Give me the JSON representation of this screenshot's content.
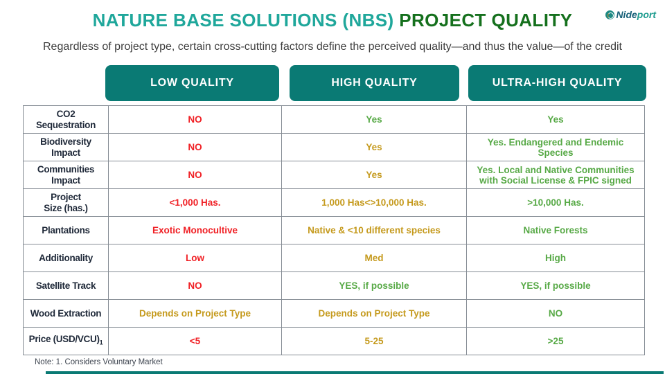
{
  "title": {
    "teal": "NATURE BASE SOLUTIONS (NBS)",
    "green": "PROJECT QUALITY"
  },
  "logo": {
    "icon": "swirl-logo-icon",
    "name_left": "Nide",
    "name_right": "port"
  },
  "subtitle": "Regardless of project type, certain cross-cutting factors define the perceived quality—and thus the value—of the credit",
  "note": "Note: 1. Considers Voluntary Market",
  "colors": {
    "title_teal": "#1FA79B",
    "title_green": "#15701D",
    "pill_teal": "#0A7A74",
    "red": "#F01F24",
    "green": "#57A946",
    "gold": "#C59A1D",
    "label": "#1E2838",
    "border": "#858C94"
  },
  "table": {
    "columns": [
      "LOW QUALITY",
      "HIGH QUALITY",
      "ULTRA-HIGH QUALITY"
    ],
    "rows": [
      {
        "label": "CO2\nSequestration",
        "cells": [
          {
            "text": "NO",
            "tone": "red"
          },
          {
            "text": "Yes",
            "tone": "green"
          },
          {
            "text": "Yes",
            "tone": "green"
          }
        ]
      },
      {
        "label": "Biodiversity\nImpact",
        "cells": [
          {
            "text": "NO",
            "tone": "red"
          },
          {
            "text": "Yes",
            "tone": "gold"
          },
          {
            "text": "Yes. Endangered and Endemic Species",
            "tone": "green"
          }
        ]
      },
      {
        "label": "Communities\nImpact",
        "cells": [
          {
            "text": "NO",
            "tone": "red"
          },
          {
            "text": "Yes",
            "tone": "gold"
          },
          {
            "text": "Yes. Local and Native Communities with Social License & FPIC signed",
            "tone": "green"
          }
        ]
      },
      {
        "label": "Project\nSize (has.)",
        "cells": [
          {
            "text": "<1,000 Has.",
            "tone": "red"
          },
          {
            "text": "1,000 Has<>10,000 Has.",
            "tone": "gold"
          },
          {
            "text": ">10,000 Has.",
            "tone": "green"
          }
        ]
      },
      {
        "label": "Plantations",
        "cells": [
          {
            "text": "Exotic Monocultive",
            "tone": "red"
          },
          {
            "text": "Native & <10 different species",
            "tone": "gold"
          },
          {
            "text": "Native Forests",
            "tone": "green"
          }
        ]
      },
      {
        "label": "Additionality",
        "cells": [
          {
            "text": "Low",
            "tone": "red"
          },
          {
            "text": "Med",
            "tone": "gold"
          },
          {
            "text": "High",
            "tone": "green"
          }
        ]
      },
      {
        "label": "Satellite Track",
        "cells": [
          {
            "text": "NO",
            "tone": "red"
          },
          {
            "text": "YES, if possible",
            "tone": "green"
          },
          {
            "text": "YES, if possible",
            "tone": "green"
          }
        ]
      },
      {
        "label": "Wood Extraction",
        "cells": [
          {
            "text": "Depends on Project Type",
            "tone": "gold"
          },
          {
            "text": "Depends on Project Type",
            "tone": "gold"
          },
          {
            "text": "NO",
            "tone": "green"
          }
        ]
      },
      {
        "label": "Price (USD/VCU)",
        "label_sub": "1",
        "cells": [
          {
            "text": "<5",
            "tone": "red"
          },
          {
            "text": "5-25",
            "tone": "gold"
          },
          {
            "text": ">25",
            "tone": "green"
          }
        ]
      }
    ]
  }
}
